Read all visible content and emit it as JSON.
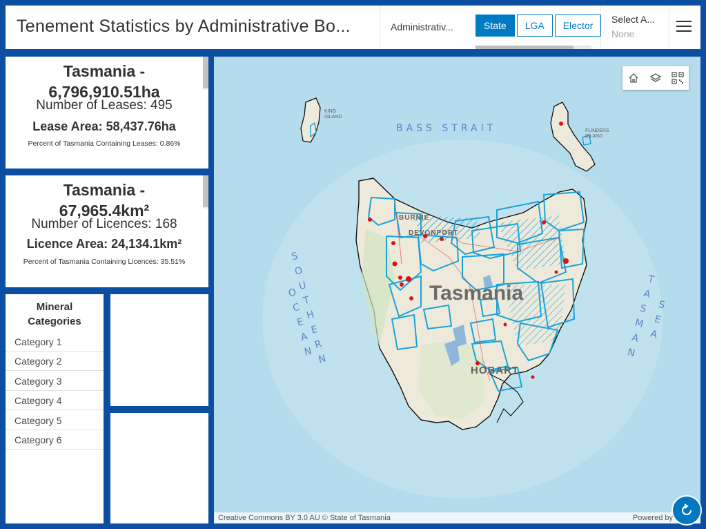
{
  "header": {
    "title": "Tenement Statistics by Administrative Bo...",
    "admin_label": "Administrativ...",
    "tabs": [
      "State",
      "LGA",
      "Elector"
    ],
    "active_tab": "State",
    "select_label": "Select A...",
    "select_value": "None"
  },
  "leases": {
    "name": "Tasmania -",
    "name_overflow": "6,796,910.51ha",
    "count_text": "Number of Leases: 495",
    "area_text": "Lease Area: 58,437.76ha",
    "percent_text": "Percent of Tasmania Containing Leases: 0.86%"
  },
  "licences": {
    "name": "Tasmania -",
    "name_overflow": "67,965.4km²",
    "count_text": "Number of Licences: 168",
    "area_text": "Licence Area: 24,134.1km²",
    "percent_text": "Percent of Tasmania Containing Licences: 35.51%"
  },
  "minerals": {
    "heading_line1": "Mineral",
    "heading_line2": "Categories",
    "items": [
      "Category 1",
      "Category 2",
      "Category 3",
      "Category 4",
      "Category 5",
      "Category 6"
    ]
  },
  "map": {
    "labels": {
      "bass_strait": "BASS STRAIT",
      "king_island": [
        "KING",
        "ISLAND"
      ],
      "flinders_island": [
        "FLINDERS",
        "ISLAND"
      ],
      "southern_ocean": [
        "S",
        "O",
        "U",
        "T",
        "H",
        "E",
        "R",
        "N"
      ],
      "ocean": [
        "O",
        "C",
        "E",
        "A",
        "N"
      ],
      "tasman": [
        "T",
        "A",
        "S",
        "M",
        "A",
        "N"
      ],
      "sea": [
        "S",
        "E",
        "A"
      ],
      "state": "Tasmania",
      "burnie": "BURNIE",
      "devonport": "DEVONPORT",
      "hobart": "HOBART"
    },
    "attribution": "Creative Commons BY 3.0 AU © State of Tasmania",
    "powered_by": "Powered by"
  },
  "colors": {
    "frame": "#0b4ea2",
    "accent": "#007ac2",
    "licence_outline": "#1aa3d9",
    "lease_fill": "#e01010",
    "sea": "#b4dced"
  },
  "icons": {
    "home": "home-icon",
    "layers": "layers-icon",
    "qr": "qr-code-icon",
    "menu": "hamburger-menu-icon",
    "refresh": "refresh-icon"
  }
}
